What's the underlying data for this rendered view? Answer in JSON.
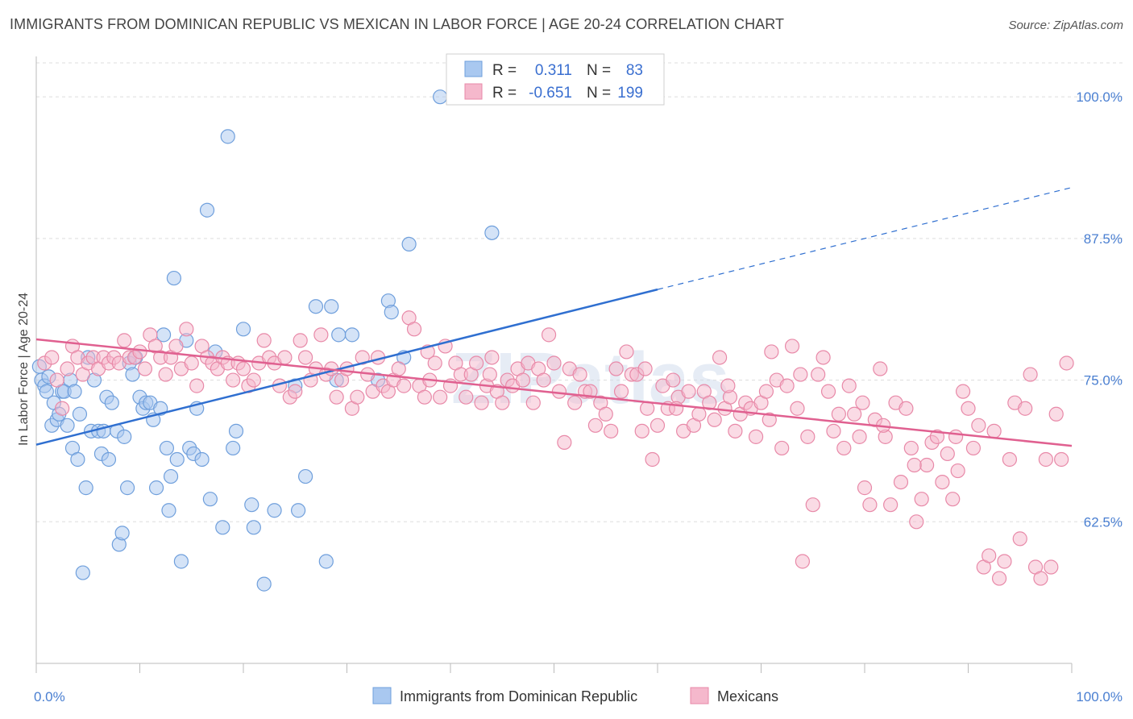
{
  "title": "IMMIGRANTS FROM DOMINICAN REPUBLIC VS MEXICAN IN LABOR FORCE | AGE 20-24 CORRELATION CHART",
  "source": "Source: ZipAtlas.com",
  "watermark": "ZIPatlas",
  "colors": {
    "blue_fill": "#a9c8f0",
    "blue_stroke": "#6f9fdc",
    "blue_line": "#2f6fd0",
    "pink_fill": "#f5b8cc",
    "pink_stroke": "#e889a8",
    "pink_line": "#e06090",
    "axis_label": "#4a7fd1",
    "grid": "#dddddd"
  },
  "legend": {
    "r_label": "R =",
    "n_label": "N =",
    "series": [
      {
        "name": "Immigrants from Dominican Republic",
        "r": "0.311",
        "n": "83"
      },
      {
        "name": "Mexicans",
        "r": "-0.651",
        "n": "199"
      }
    ]
  },
  "chart_data": {
    "type": "scatter",
    "xlabel": "",
    "ylabel": "In Labor Force | Age 20-24",
    "xlim": [
      0,
      100
    ],
    "ylim": [
      50,
      103
    ],
    "x_ticks": [
      "0.0%",
      "100.0%"
    ],
    "y_ticks": [
      {
        "value": 62.5,
        "label": "62.5%"
      },
      {
        "value": 75.0,
        "label": "75.0%"
      },
      {
        "value": 87.5,
        "label": "87.5%"
      },
      {
        "value": 100.0,
        "label": "100.0%"
      }
    ],
    "series": [
      {
        "name": "Immigrants from Dominican Republic",
        "color": "blue",
        "trend": {
          "x0": 0,
          "y0": 69.3,
          "x1": 60,
          "y1": 83.0,
          "dashed_to_x": 100,
          "dashed_to_y": 92.0
        },
        "points": [
          [
            0.3,
            76.2
          ],
          [
            0.5,
            75.0
          ],
          [
            0.8,
            74.5
          ],
          [
            1.0,
            74.0
          ],
          [
            1.2,
            75.3
          ],
          [
            1.5,
            71.0
          ],
          [
            1.7,
            73.0
          ],
          [
            2.0,
            71.5
          ],
          [
            2.2,
            72.0
          ],
          [
            2.5,
            74.0
          ],
          [
            2.7,
            74.0
          ],
          [
            3.0,
            71.0
          ],
          [
            3.3,
            75.0
          ],
          [
            3.5,
            69.0
          ],
          [
            3.7,
            74.0
          ],
          [
            4.0,
            68.0
          ],
          [
            4.2,
            72.0
          ],
          [
            4.5,
            58.0
          ],
          [
            4.8,
            65.5
          ],
          [
            5.0,
            77.0
          ],
          [
            5.3,
            70.5
          ],
          [
            5.6,
            75.0
          ],
          [
            6.0,
            70.5
          ],
          [
            6.3,
            68.5
          ],
          [
            6.5,
            70.5
          ],
          [
            6.8,
            73.5
          ],
          [
            7.0,
            68.0
          ],
          [
            7.3,
            73.0
          ],
          [
            7.8,
            70.5
          ],
          [
            8.0,
            60.5
          ],
          [
            8.3,
            61.5
          ],
          [
            8.5,
            70.0
          ],
          [
            8.8,
            65.5
          ],
          [
            9.0,
            76.5
          ],
          [
            9.3,
            75.5
          ],
          [
            9.6,
            77.0
          ],
          [
            10.0,
            73.5
          ],
          [
            10.3,
            72.5
          ],
          [
            10.6,
            73.0
          ],
          [
            11.0,
            73.0
          ],
          [
            11.3,
            71.5
          ],
          [
            11.6,
            65.5
          ],
          [
            12.0,
            72.5
          ],
          [
            12.3,
            79.0
          ],
          [
            12.6,
            69.0
          ],
          [
            12.8,
            63.5
          ],
          [
            13.0,
            66.5
          ],
          [
            13.3,
            84.0
          ],
          [
            13.6,
            68.0
          ],
          [
            14.0,
            59.0
          ],
          [
            14.5,
            78.5
          ],
          [
            14.8,
            69.0
          ],
          [
            15.2,
            68.5
          ],
          [
            15.5,
            72.5
          ],
          [
            16.0,
            68.0
          ],
          [
            16.5,
            90.0
          ],
          [
            16.8,
            64.5
          ],
          [
            17.3,
            77.5
          ],
          [
            18.0,
            62.0
          ],
          [
            18.5,
            96.5
          ],
          [
            19.0,
            69.0
          ],
          [
            19.3,
            70.5
          ],
          [
            20.0,
            79.5
          ],
          [
            20.8,
            64.0
          ],
          [
            21.0,
            62.0
          ],
          [
            22.0,
            57.0
          ],
          [
            23.0,
            63.5
          ],
          [
            25.0,
            74.5
          ],
          [
            25.3,
            63.5
          ],
          [
            26.0,
            66.5
          ],
          [
            27.0,
            81.5
          ],
          [
            28.0,
            59.0
          ],
          [
            28.5,
            81.5
          ],
          [
            29.0,
            75.0
          ],
          [
            29.2,
            79.0
          ],
          [
            30.5,
            79.0
          ],
          [
            33.0,
            75.0
          ],
          [
            34.0,
            82.0
          ],
          [
            34.3,
            81.0
          ],
          [
            35.5,
            77.0
          ],
          [
            36.0,
            87.0
          ],
          [
            39.0,
            100.0
          ],
          [
            44.0,
            88.0
          ]
        ]
      },
      {
        "name": "Mexicans",
        "color": "pink",
        "trend": {
          "x0": 0,
          "y0": 78.6,
          "x1": 100,
          "y1": 69.2
        },
        "points": [
          [
            0.8,
            76.5
          ],
          [
            1.5,
            77.0
          ],
          [
            2.0,
            75.0
          ],
          [
            2.5,
            72.5
          ],
          [
            3.0,
            76.0
          ],
          [
            3.5,
            78.0
          ],
          [
            4.0,
            77.0
          ],
          [
            4.5,
            75.5
          ],
          [
            5.0,
            76.5
          ],
          [
            5.5,
            77.0
          ],
          [
            6.0,
            76.0
          ],
          [
            6.5,
            77.0
          ],
          [
            7.0,
            76.5
          ],
          [
            7.5,
            77.0
          ],
          [
            8.0,
            76.5
          ],
          [
            8.5,
            78.5
          ],
          [
            9.0,
            77.0
          ],
          [
            9.5,
            77.0
          ],
          [
            10.0,
            77.5
          ],
          [
            10.5,
            76.0
          ],
          [
            11.0,
            79.0
          ],
          [
            11.5,
            78.0
          ],
          [
            12.0,
            77.0
          ],
          [
            12.5,
            75.5
          ],
          [
            13.0,
            77.0
          ],
          [
            13.5,
            78.0
          ],
          [
            14.0,
            76.0
          ],
          [
            14.5,
            79.5
          ],
          [
            15.0,
            76.5
          ],
          [
            15.5,
            74.5
          ],
          [
            16.0,
            78.0
          ],
          [
            16.5,
            77.0
          ],
          [
            17.0,
            76.5
          ],
          [
            17.5,
            76.0
          ],
          [
            18.0,
            77.0
          ],
          [
            18.5,
            76.5
          ],
          [
            19.0,
            75.0
          ],
          [
            19.5,
            76.5
          ],
          [
            20.0,
            76.0
          ],
          [
            20.5,
            74.5
          ],
          [
            21.0,
            75.0
          ],
          [
            21.5,
            76.5
          ],
          [
            22.0,
            78.5
          ],
          [
            22.5,
            77.0
          ],
          [
            23.0,
            76.5
          ],
          [
            23.5,
            74.5
          ],
          [
            24.0,
            77.0
          ],
          [
            24.5,
            73.5
          ],
          [
            25.0,
            74.0
          ],
          [
            25.5,
            78.5
          ],
          [
            26.0,
            77.0
          ],
          [
            26.5,
            75.0
          ],
          [
            27.0,
            76.0
          ],
          [
            27.5,
            79.0
          ],
          [
            28.0,
            75.5
          ],
          [
            28.5,
            76.0
          ],
          [
            29.0,
            73.5
          ],
          [
            29.5,
            75.0
          ],
          [
            30.0,
            76.0
          ],
          [
            30.5,
            72.5
          ],
          [
            31.0,
            73.5
          ],
          [
            31.5,
            77.0
          ],
          [
            32.0,
            75.5
          ],
          [
            32.5,
            74.0
          ],
          [
            33.0,
            77.0
          ],
          [
            33.5,
            74.5
          ],
          [
            34.0,
            74.0
          ],
          [
            34.5,
            75.0
          ],
          [
            35.0,
            76.0
          ],
          [
            35.5,
            74.5
          ],
          [
            36.0,
            80.5
          ],
          [
            36.5,
            79.5
          ],
          [
            37.0,
            74.5
          ],
          [
            37.5,
            73.5
          ],
          [
            38.0,
            75.0
          ],
          [
            38.5,
            76.5
          ],
          [
            39.0,
            73.5
          ],
          [
            39.5,
            78.0
          ],
          [
            40.0,
            74.5
          ],
          [
            40.5,
            76.5
          ],
          [
            41.0,
            75.5
          ],
          [
            41.5,
            73.5
          ],
          [
            42.0,
            75.5
          ],
          [
            42.5,
            76.5
          ],
          [
            43.0,
            73.0
          ],
          [
            43.5,
            74.5
          ],
          [
            44.0,
            77.0
          ],
          [
            44.5,
            74.0
          ],
          [
            45.0,
            73.0
          ],
          [
            45.5,
            75.0
          ],
          [
            46.0,
            74.5
          ],
          [
            46.5,
            76.0
          ],
          [
            47.0,
            75.0
          ],
          [
            47.5,
            76.5
          ],
          [
            48.0,
            73.0
          ],
          [
            48.5,
            76.0
          ],
          [
            49.0,
            75.0
          ],
          [
            49.5,
            79.0
          ],
          [
            50.0,
            76.5
          ],
          [
            50.5,
            74.0
          ],
          [
            51.0,
            69.5
          ],
          [
            51.5,
            76.0
          ],
          [
            52.0,
            73.0
          ],
          [
            52.5,
            75.5
          ],
          [
            53.0,
            74.0
          ],
          [
            53.5,
            74.0
          ],
          [
            54.0,
            71.0
          ],
          [
            54.5,
            73.0
          ],
          [
            55.0,
            72.0
          ],
          [
            55.5,
            70.5
          ],
          [
            56.0,
            76.0
          ],
          [
            56.5,
            74.0
          ],
          [
            57.0,
            77.5
          ],
          [
            57.5,
            75.5
          ],
          [
            58.0,
            75.5
          ],
          [
            58.5,
            70.5
          ],
          [
            59.0,
            72.5
          ],
          [
            59.5,
            68.0
          ],
          [
            60.0,
            71.0
          ],
          [
            60.5,
            74.5
          ],
          [
            61.0,
            72.5
          ],
          [
            61.5,
            75.0
          ],
          [
            62.0,
            73.5
          ],
          [
            62.5,
            70.5
          ],
          [
            63.0,
            74.0
          ],
          [
            63.5,
            71.0
          ],
          [
            64.0,
            72.0
          ],
          [
            64.5,
            74.0
          ],
          [
            65.0,
            73.0
          ],
          [
            65.5,
            71.5
          ],
          [
            66.0,
            77.0
          ],
          [
            66.5,
            72.5
          ],
          [
            67.0,
            73.5
          ],
          [
            67.5,
            70.5
          ],
          [
            68.0,
            72.0
          ],
          [
            68.5,
            73.0
          ],
          [
            69.0,
            72.5
          ],
          [
            69.5,
            70.0
          ],
          [
            70.0,
            73.0
          ],
          [
            70.5,
            74.0
          ],
          [
            71.0,
            77.5
          ],
          [
            71.5,
            75.0
          ],
          [
            72.0,
            69.0
          ],
          [
            72.5,
            74.5
          ],
          [
            73.0,
            78.0
          ],
          [
            73.5,
            72.5
          ],
          [
            74.0,
            59.0
          ],
          [
            74.5,
            70.0
          ],
          [
            75.0,
            64.0
          ],
          [
            75.5,
            75.5
          ],
          [
            76.0,
            77.0
          ],
          [
            76.5,
            74.0
          ],
          [
            77.0,
            70.5
          ],
          [
            77.5,
            72.0
          ],
          [
            78.0,
            69.0
          ],
          [
            78.5,
            74.5
          ],
          [
            79.0,
            72.0
          ],
          [
            79.5,
            70.0
          ],
          [
            80.0,
            65.5
          ],
          [
            80.5,
            64.0
          ],
          [
            81.0,
            71.5
          ],
          [
            81.5,
            76.0
          ],
          [
            82.0,
            70.0
          ],
          [
            82.5,
            64.0
          ],
          [
            83.0,
            73.0
          ],
          [
            83.5,
            66.0
          ],
          [
            84.0,
            72.5
          ],
          [
            84.5,
            69.0
          ],
          [
            85.0,
            62.5
          ],
          [
            85.5,
            64.5
          ],
          [
            86.0,
            67.5
          ],
          [
            86.5,
            69.5
          ],
          [
            87.0,
            70.0
          ],
          [
            87.5,
            66.0
          ],
          [
            88.0,
            68.5
          ],
          [
            88.5,
            64.5
          ],
          [
            89.0,
            67.0
          ],
          [
            89.5,
            74.0
          ],
          [
            90.0,
            72.5
          ],
          [
            90.5,
            69.0
          ],
          [
            91.0,
            71.0
          ],
          [
            91.5,
            58.5
          ],
          [
            92.0,
            59.5
          ],
          [
            92.5,
            70.5
          ],
          [
            93.0,
            57.5
          ],
          [
            93.5,
            59.0
          ],
          [
            94.0,
            68.0
          ],
          [
            94.5,
            73.0
          ],
          [
            95.0,
            61.0
          ],
          [
            95.5,
            72.5
          ],
          [
            96.0,
            75.5
          ],
          [
            96.5,
            58.5
          ],
          [
            97.0,
            57.5
          ],
          [
            97.5,
            68.0
          ],
          [
            98.0,
            58.5
          ],
          [
            98.5,
            72.0
          ],
          [
            99.0,
            68.0
          ],
          [
            99.5,
            76.5
          ],
          [
            37.8,
            77.5
          ],
          [
            43.8,
            75.5
          ],
          [
            58.8,
            76.0
          ],
          [
            61.8,
            72.5
          ],
          [
            66.8,
            74.5
          ],
          [
            70.8,
            71.5
          ],
          [
            73.8,
            75.5
          ],
          [
            79.8,
            73.0
          ],
          [
            81.8,
            71.0
          ],
          [
            84.8,
            67.5
          ],
          [
            88.8,
            70.0
          ]
        ]
      }
    ]
  }
}
